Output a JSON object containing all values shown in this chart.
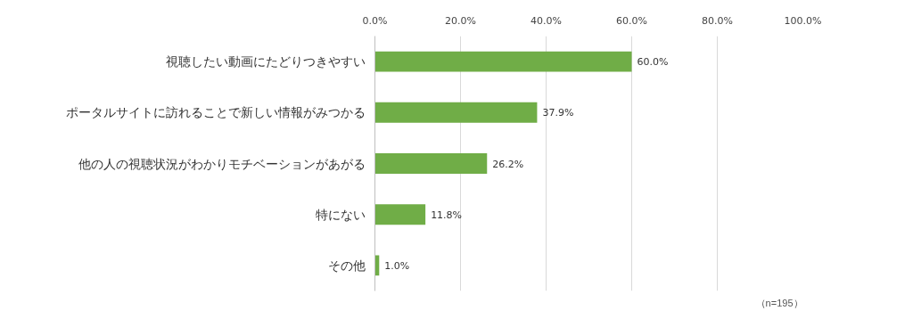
{
  "chart_data": {
    "type": "bar",
    "orientation": "horizontal",
    "categories": [
      "視聴したい動画にたどりつきやすい",
      "ポータルサイトに訪れることで新しい情報がみつかる",
      "他の人の視聴状況がわかりモチベーションがあがる",
      "特にない",
      "その他"
    ],
    "values": [
      60.0,
      37.9,
      26.2,
      11.8,
      1.0
    ],
    "value_labels": [
      "60.0%",
      "37.9%",
      "26.2%",
      "11.8%",
      "1.0%"
    ],
    "color": "#70ad47",
    "xlim": [
      0,
      100
    ],
    "xticks": [
      {
        "value": 0,
        "label": "0.0%"
      },
      {
        "value": 20,
        "label": "20.0%"
      },
      {
        "value": 40,
        "label": "40.0%"
      },
      {
        "value": 60,
        "label": "60.0%"
      },
      {
        "value": 80,
        "label": "80.0%"
      },
      {
        "value": 100,
        "label": "100.0%"
      }
    ],
    "grid": "x",
    "annotations": [
      "（n=195）"
    ]
  }
}
